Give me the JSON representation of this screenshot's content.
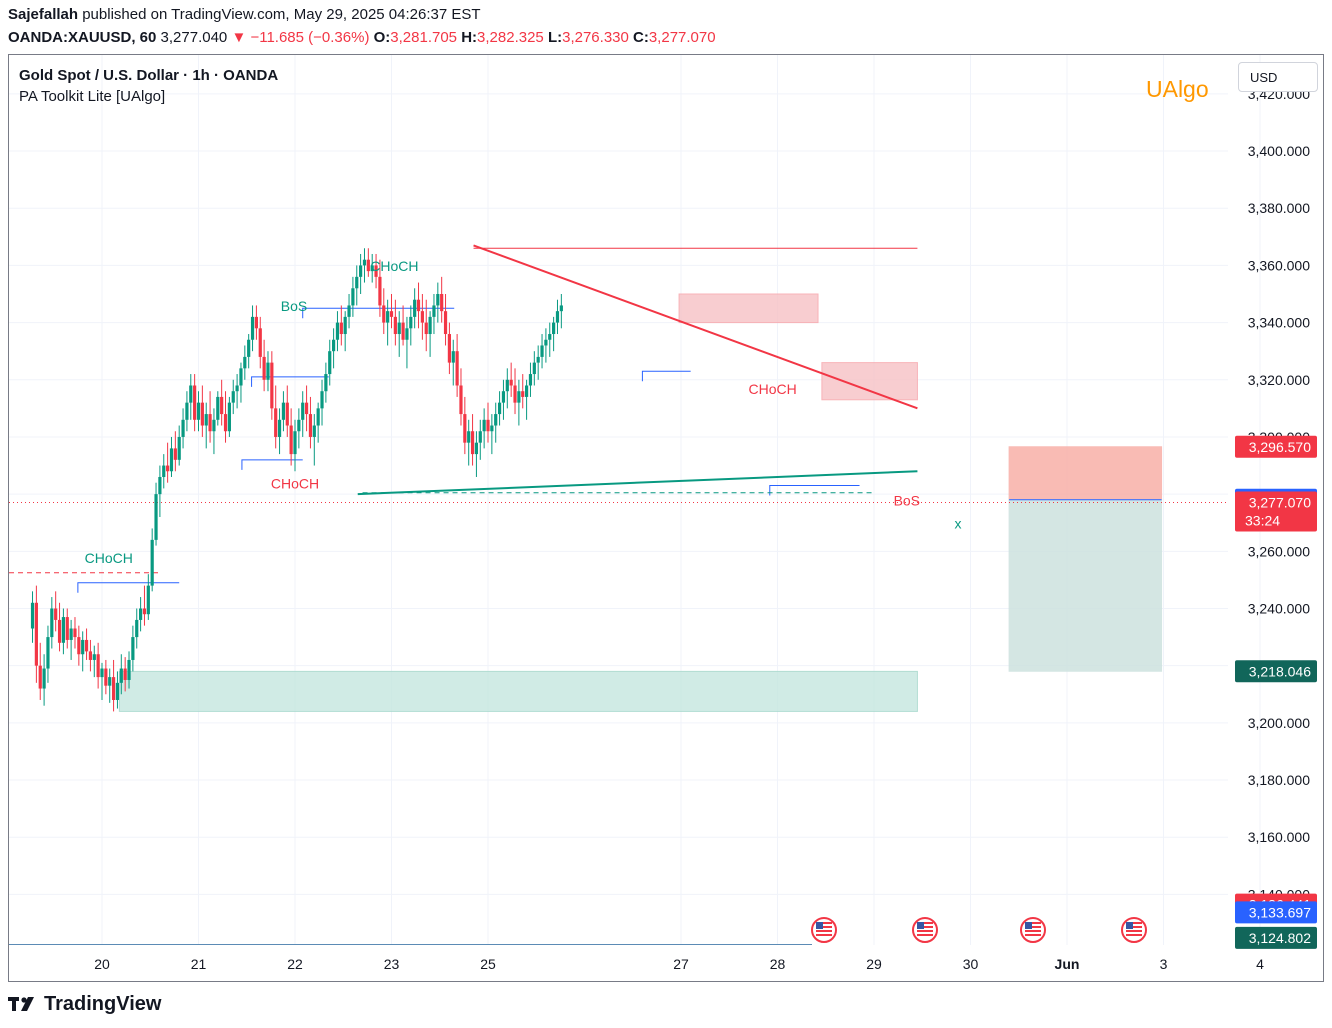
{
  "header": {
    "publisher": "Sajefallah",
    "published_text": "published on TradingView.com, May 29, 2025 04:26:37 EST",
    "symbol": "OANDA:XAUUSD, 60",
    "last": "3,277.040",
    "change": "−11.685 (−0.36%)",
    "o_label": "O:",
    "o": "3,281.705",
    "h_label": "H:",
    "h": "3,282.325",
    "l_label": "L:",
    "l": "3,276.330",
    "c_label": "C:",
    "c": "3,277.070"
  },
  "legend": {
    "title": "Gold Spot / U.S. Dollar · 1h · OANDA",
    "indicator": "PA Toolkit Lite [UAlgo]"
  },
  "watermark": "UAlgo",
  "currency": "USD",
  "footer": {
    "brand": "TradingView"
  },
  "colors": {
    "bull": "#089981",
    "bear": "#f23645",
    "structure": "#2962ff",
    "supply_zone": "#f7c5c8",
    "demand_zone": "#c8e8e1",
    "short_sl_zone": "#f8b0a8",
    "short_tp_zone": "#cde2df",
    "watermark": "#ff9800",
    "target_label": "#11665a"
  },
  "chart_data": {
    "type": "candlestick",
    "instrument": "XAUUSD",
    "timeframe": "1h",
    "y_axis": {
      "ticks": [
        3140,
        3160,
        3180,
        3200,
        3220,
        3240,
        3260,
        3280,
        3300,
        3320,
        3340,
        3360,
        3380,
        3400,
        3420
      ],
      "tick_labels": [
        "3,140.000",
        "3,160.000",
        "3,180.000",
        "3,200.000",
        "3,220.000",
        "3,240.000",
        "3,260.000",
        "3,280.000",
        "3,300.000",
        "3,320.000",
        "3,340.000",
        "3,360.000",
        "3,380.000",
        "3,400.000",
        "3,420.000"
      ],
      "range": [
        3123,
        3428
      ]
    },
    "x_axis": {
      "ticks": [
        "20",
        "21",
        "22",
        "23",
        "25",
        "27",
        "28",
        "29",
        "30",
        "Jun",
        "3",
        "4"
      ],
      "tick_days": [
        20,
        21,
        22,
        23,
        24,
        26,
        27,
        28,
        29,
        30,
        31,
        32
      ],
      "range_days": [
        19.275,
        31.4
      ]
    },
    "price_labels": [
      {
        "value": 3296.57,
        "text": "3,296.570",
        "color": "#f23645"
      },
      {
        "value": 3278.042,
        "text": "3,278.042",
        "color": "#2962ff"
      },
      {
        "value": 3277.07,
        "text": "3,277.070",
        "sub": "33:24",
        "color": "#f23645"
      },
      {
        "value": 3218.046,
        "text": "3,218.046",
        "color": "#11665a"
      },
      {
        "value": 3136.441,
        "text": "3,136.441",
        "color": "#f23645"
      },
      {
        "value": 3133.697,
        "text": "3,133.697",
        "color": "#2962ff"
      },
      {
        "value": 3124.802,
        "text": "3,124.802",
        "color": "#11665a"
      }
    ],
    "candles": [
      [
        19.28,
        3233,
        3246,
        3228,
        3242
      ],
      [
        19.32,
        3242,
        3248,
        3214,
        3220
      ],
      [
        19.36,
        3220,
        3228,
        3208,
        3212
      ],
      [
        19.4,
        3212,
        3224,
        3206,
        3219
      ],
      [
        19.44,
        3219,
        3234,
        3214,
        3230
      ],
      [
        19.48,
        3230,
        3244,
        3226,
        3240
      ],
      [
        19.52,
        3240,
        3246,
        3232,
        3236
      ],
      [
        19.56,
        3236,
        3242,
        3225,
        3228
      ],
      [
        19.6,
        3228,
        3240,
        3224,
        3237
      ],
      [
        19.64,
        3237,
        3240,
        3226,
        3229
      ],
      [
        19.68,
        3229,
        3236,
        3222,
        3233
      ],
      [
        19.72,
        3233,
        3237,
        3226,
        3230
      ],
      [
        19.76,
        3230,
        3234,
        3220,
        3224
      ],
      [
        19.8,
        3224,
        3232,
        3218,
        3229
      ],
      [
        19.84,
        3229,
        3233,
        3222,
        3225
      ],
      [
        19.88,
        3225,
        3229,
        3218,
        3222
      ],
      [
        19.92,
        3222,
        3227,
        3216,
        3224
      ],
      [
        19.96,
        3224,
        3228,
        3212,
        3216
      ],
      [
        20.0,
        3216,
        3221,
        3208,
        3219
      ],
      [
        20.04,
        3219,
        3222,
        3210,
        3213
      ],
      [
        20.08,
        3213,
        3219,
        3207,
        3216
      ],
      [
        20.12,
        3216,
        3222,
        3204,
        3208
      ],
      [
        20.16,
        3208,
        3218,
        3205,
        3214
      ],
      [
        20.2,
        3214,
        3224,
        3210,
        3219
      ],
      [
        20.24,
        3219,
        3223,
        3211,
        3215
      ],
      [
        20.28,
        3215,
        3225,
        3212,
        3222
      ],
      [
        20.32,
        3222,
        3234,
        3218,
        3230
      ],
      [
        20.36,
        3230,
        3240,
        3226,
        3236
      ],
      [
        20.4,
        3236,
        3244,
        3232,
        3240
      ],
      [
        20.44,
        3240,
        3248,
        3234,
        3238
      ],
      [
        20.48,
        3238,
        3252,
        3236,
        3248
      ],
      [
        20.52,
        3248,
        3268,
        3246,
        3264
      ],
      [
        20.56,
        3264,
        3284,
        3262,
        3280
      ],
      [
        20.6,
        3280,
        3290,
        3272,
        3286
      ],
      [
        20.64,
        3286,
        3294,
        3282,
        3290
      ],
      [
        20.68,
        3290,
        3298,
        3284,
        3288
      ],
      [
        20.72,
        3288,
        3300,
        3286,
        3296
      ],
      [
        20.76,
        3296,
        3302,
        3288,
        3292
      ],
      [
        20.8,
        3292,
        3304,
        3290,
        3300
      ],
      [
        20.84,
        3300,
        3310,
        3296,
        3306
      ],
      [
        20.88,
        3306,
        3316,
        3302,
        3312
      ],
      [
        20.92,
        3312,
        3322,
        3306,
        3318
      ],
      [
        20.96,
        3318,
        3322,
        3302,
        3306
      ],
      [
        21.0,
        3306,
        3316,
        3302,
        3312
      ],
      [
        21.04,
        3312,
        3318,
        3300,
        3304
      ],
      [
        21.08,
        3304,
        3312,
        3296,
        3308
      ],
      [
        21.12,
        3308,
        3316,
        3298,
        3302
      ],
      [
        21.16,
        3302,
        3310,
        3294,
        3306
      ],
      [
        21.2,
        3306,
        3316,
        3304,
        3314
      ],
      [
        21.24,
        3314,
        3320,
        3304,
        3308
      ],
      [
        21.28,
        3308,
        3316,
        3298,
        3302
      ],
      [
        21.32,
        3302,
        3314,
        3300,
        3312
      ],
      [
        21.36,
        3312,
        3320,
        3308,
        3316
      ],
      [
        21.4,
        3316,
        3322,
        3310,
        3318
      ],
      [
        21.44,
        3318,
        3326,
        3312,
        3324
      ],
      [
        21.48,
        3324,
        3332,
        3320,
        3328
      ],
      [
        21.52,
        3328,
        3336,
        3324,
        3334
      ],
      [
        21.56,
        3334,
        3346,
        3330,
        3342
      ],
      [
        21.6,
        3342,
        3346,
        3334,
        3338
      ],
      [
        21.64,
        3338,
        3342,
        3324,
        3328
      ],
      [
        21.68,
        3328,
        3334,
        3316,
        3320
      ],
      [
        21.72,
        3320,
        3330,
        3316,
        3326
      ],
      [
        21.76,
        3326,
        3330,
        3306,
        3310
      ],
      [
        21.8,
        3310,
        3318,
        3296,
        3300
      ],
      [
        21.84,
        3300,
        3310,
        3294,
        3306
      ],
      [
        21.88,
        3306,
        3316,
        3302,
        3312
      ],
      [
        21.92,
        3312,
        3318,
        3300,
        3304
      ],
      [
        21.96,
        3304,
        3310,
        3290,
        3294
      ],
      [
        22.0,
        3294,
        3306,
        3288,
        3302
      ],
      [
        22.04,
        3302,
        3310,
        3296,
        3306
      ],
      [
        22.08,
        3306,
        3316,
        3300,
        3312
      ],
      [
        22.12,
        3312,
        3318,
        3302,
        3308
      ],
      [
        22.16,
        3308,
        3314,
        3296,
        3300
      ],
      [
        22.2,
        3300,
        3308,
        3290,
        3304
      ],
      [
        22.24,
        3304,
        3312,
        3298,
        3310
      ],
      [
        22.28,
        3310,
        3320,
        3304,
        3316
      ],
      [
        22.32,
        3316,
        3326,
        3312,
        3322
      ],
      [
        22.36,
        3322,
        3334,
        3318,
        3330
      ],
      [
        22.4,
        3330,
        3338,
        3324,
        3334
      ],
      [
        22.44,
        3334,
        3344,
        3330,
        3340
      ],
      [
        22.48,
        3340,
        3346,
        3332,
        3336
      ],
      [
        22.52,
        3336,
        3344,
        3330,
        3342
      ],
      [
        22.56,
        3342,
        3350,
        3338,
        3346
      ],
      [
        22.6,
        3346,
        3356,
        3342,
        3352
      ],
      [
        22.64,
        3352,
        3360,
        3346,
        3356
      ],
      [
        22.68,
        3356,
        3364,
        3350,
        3360
      ],
      [
        22.72,
        3360,
        3366,
        3354,
        3362
      ],
      [
        22.76,
        3362,
        3366,
        3356,
        3358
      ],
      [
        22.8,
        3358,
        3364,
        3354,
        3360
      ],
      [
        22.84,
        3360,
        3364,
        3352,
        3356
      ],
      [
        22.88,
        3356,
        3362,
        3342,
        3346
      ],
      [
        22.92,
        3346,
        3352,
        3336,
        3340
      ],
      [
        22.96,
        3340,
        3348,
        3332,
        3344
      ],
      [
        23.0,
        3344,
        3350,
        3338,
        3342
      ],
      [
        23.04,
        3342,
        3348,
        3332,
        3336
      ],
      [
        23.08,
        3336,
        3344,
        3328,
        3340
      ],
      [
        23.12,
        3340,
        3346,
        3332,
        3334
      ],
      [
        23.16,
        3334,
        3342,
        3324,
        3338
      ],
      [
        23.2,
        3338,
        3346,
        3332,
        3342
      ],
      [
        23.24,
        3342,
        3352,
        3338,
        3348
      ],
      [
        23.28,
        3348,
        3354,
        3338,
        3344
      ],
      [
        23.32,
        3344,
        3350,
        3334,
        3340
      ],
      [
        23.36,
        3340,
        3348,
        3330,
        3336
      ],
      [
        23.4,
        3336,
        3344,
        3328,
        3342
      ],
      [
        23.44,
        3342,
        3350,
        3336,
        3346
      ],
      [
        23.48,
        3346,
        3354,
        3340,
        3350
      ],
      [
        23.52,
        3350,
        3356,
        3340,
        3344
      ],
      [
        23.56,
        3344,
        3350,
        3332,
        3336
      ],
      [
        23.6,
        3336,
        3340,
        3322,
        3326
      ],
      [
        23.64,
        3326,
        3334,
        3318,
        3330
      ],
      [
        23.68,
        3330,
        3336,
        3314,
        3318
      ],
      [
        23.72,
        3318,
        3324,
        3304,
        3308
      ],
      [
        23.76,
        3308,
        3314,
        3294,
        3298
      ],
      [
        23.8,
        3298,
        3306,
        3290,
        3302
      ],
      [
        23.84,
        3302,
        3308,
        3290,
        3294
      ],
      [
        23.88,
        3294,
        3302,
        3286,
        3298
      ],
      [
        23.92,
        3298,
        3306,
        3292,
        3302
      ],
      [
        23.96,
        3302,
        3310,
        3296,
        3306
      ],
      [
        24.0,
        3306,
        3312,
        3298,
        3302
      ],
      [
        24.04,
        3302,
        3308,
        3294,
        3304
      ],
      [
        24.08,
        3304,
        3312,
        3298,
        3308
      ],
      [
        24.12,
        3308,
        3316,
        3304,
        3312
      ],
      [
        24.16,
        3312,
        3320,
        3306,
        3316
      ],
      [
        24.2,
        3316,
        3324,
        3310,
        3320
      ],
      [
        24.24,
        3320,
        3326,
        3314,
        3318
      ],
      [
        24.28,
        3318,
        3324,
        3308,
        3312
      ],
      [
        24.32,
        3312,
        3320,
        3304,
        3316
      ],
      [
        24.36,
        3316,
        3322,
        3310,
        3314
      ],
      [
        24.4,
        3314,
        3320,
        3306,
        3318
      ],
      [
        24.44,
        3318,
        3326,
        3314,
        3322
      ],
      [
        24.48,
        3322,
        3330,
        3318,
        3326
      ],
      [
        24.52,
        3326,
        3332,
        3320,
        3328
      ],
      [
        24.56,
        3328,
        3336,
        3324,
        3332
      ],
      [
        24.6,
        3332,
        3338,
        3326,
        3334
      ],
      [
        24.64,
        3334,
        3340,
        3328,
        3336
      ],
      [
        24.68,
        3336,
        3342,
        3330,
        3340
      ],
      [
        24.72,
        3340,
        3348,
        3336,
        3344
      ],
      [
        24.76,
        3344,
        3350,
        3338,
        3346
      ]
    ],
    "zones": [
      {
        "kind": "supply",
        "x0": 25.98,
        "x1": 27.42,
        "low": 3340,
        "high": 3350
      },
      {
        "kind": "supply",
        "x0": 27.46,
        "x1": 28.45,
        "low": 3313,
        "high": 3326
      },
      {
        "kind": "demand",
        "x0": 20.18,
        "x1": 28.45,
        "low": 3204,
        "high": 3218
      },
      {
        "kind": "short_stop",
        "x0": 29.4,
        "x1": 30.98,
        "low": 3278.042,
        "high": 3296.57
      },
      {
        "kind": "short_target",
        "x0": 29.4,
        "x1": 30.98,
        "low": 3218.046,
        "high": 3278.042
      }
    ],
    "structure_labels": [
      {
        "text": "CHoCH",
        "color": "bull",
        "x": 20.07,
        "y": 3256
      },
      {
        "text": "BoS",
        "color": "bull",
        "x": 21.99,
        "y": 3344
      },
      {
        "text": "CHoCH",
        "color": "bull",
        "x": 23.03,
        "y": 3358
      },
      {
        "text": "CHoCH",
        "color": "bear",
        "x": 22.0,
        "y": 3282
      },
      {
        "text": "CHoCH",
        "color": "bear",
        "x": 26.95,
        "y": 3315
      },
      {
        "text": "BoS",
        "color": "bear",
        "x": 28.34,
        "y": 3276
      },
      {
        "text": "x",
        "color": "bull",
        "x": 28.87,
        "y": 3268
      }
    ],
    "structure_lines": [
      {
        "x0": 19.75,
        "x1": 20.8,
        "y": 3249
      },
      {
        "x0": 21.55,
        "x1": 22.35,
        "y": 3321
      },
      {
        "x0": 21.45,
        "x1": 22.08,
        "y": 3292
      },
      {
        "x0": 22.08,
        "x1": 23.65,
        "y": 3345
      },
      {
        "x0": 25.6,
        "x1": 26.1,
        "y": 3323
      },
      {
        "x0": 26.92,
        "x1": 27.85,
        "y": 3283
      }
    ],
    "trendlines": [
      {
        "x0": 23.85,
        "x1": 28.45,
        "y0": 3367,
        "y1": 3310,
        "color": "bear"
      },
      {
        "x0": 22.65,
        "x1": 28.45,
        "y0": 3280,
        "y1": 3288,
        "color": "bull"
      },
      {
        "x0": 23.85,
        "x1": 28.45,
        "y0": 3366,
        "y1": 3366,
        "color": "bear",
        "thin": true
      }
    ],
    "current_price_line": 3277.07,
    "legend": []
  }
}
